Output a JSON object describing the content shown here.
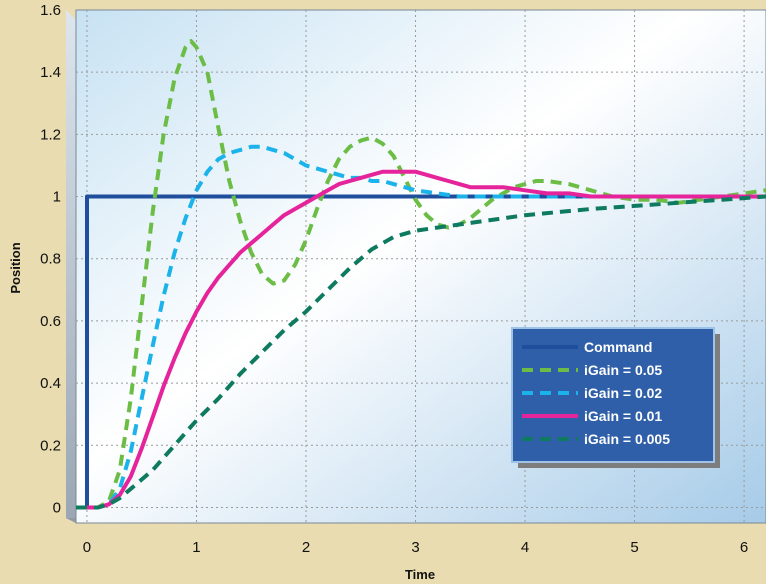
{
  "chart_data": {
    "type": "line",
    "title": "",
    "xlabel": "Time",
    "ylabel": "Position",
    "xlim": [
      -0.1,
      6.2
    ],
    "ylim": [
      -0.05,
      1.6
    ],
    "x_ticks": [
      0,
      1,
      2,
      3,
      4,
      5,
      6
    ],
    "y_ticks": [
      0,
      0.2,
      0.4,
      0.6,
      0.8,
      1,
      1.2,
      1.4,
      1.6
    ],
    "x_tick_labels": [
      "0",
      "1",
      "2",
      "3",
      "4",
      "5",
      "6"
    ],
    "y_tick_labels": [
      "0",
      "0.2",
      "0.4",
      "0.6",
      "0.8",
      "1",
      "1.2",
      "1.4",
      "1.6"
    ],
    "grid": true,
    "legend_position": "lower-right",
    "series": [
      {
        "name": "Command",
        "color": "#1f4e9c",
        "dash": "solid",
        "points": [
          [
            -0.1,
            0
          ],
          [
            0,
            0
          ],
          [
            0,
            1
          ],
          [
            6.2,
            1
          ]
        ]
      },
      {
        "name": "iGain = 0.05",
        "color": "#6cbd45",
        "dash": "dashed",
        "points": [
          [
            -0.1,
            0
          ],
          [
            0.1,
            0
          ],
          [
            0.2,
            0.02
          ],
          [
            0.3,
            0.12
          ],
          [
            0.4,
            0.35
          ],
          [
            0.5,
            0.65
          ],
          [
            0.6,
            0.95
          ],
          [
            0.7,
            1.2
          ],
          [
            0.8,
            1.38
          ],
          [
            0.9,
            1.48
          ],
          [
            0.95,
            1.5
          ],
          [
            1.0,
            1.48
          ],
          [
            1.1,
            1.4
          ],
          [
            1.2,
            1.22
          ],
          [
            1.3,
            1.05
          ],
          [
            1.4,
            0.92
          ],
          [
            1.5,
            0.82
          ],
          [
            1.6,
            0.75
          ],
          [
            1.7,
            0.72
          ],
          [
            1.8,
            0.73
          ],
          [
            1.9,
            0.78
          ],
          [
            2.0,
            0.86
          ],
          [
            2.1,
            0.96
          ],
          [
            2.2,
            1.05
          ],
          [
            2.3,
            1.12
          ],
          [
            2.4,
            1.16
          ],
          [
            2.5,
            1.18
          ],
          [
            2.6,
            1.19
          ],
          [
            2.7,
            1.17
          ],
          [
            2.8,
            1.13
          ],
          [
            2.9,
            1.06
          ],
          [
            3.0,
            0.99
          ],
          [
            3.1,
            0.94
          ],
          [
            3.2,
            0.91
          ],
          [
            3.3,
            0.9
          ],
          [
            3.4,
            0.91
          ],
          [
            3.5,
            0.93
          ],
          [
            3.6,
            0.96
          ],
          [
            3.7,
            0.99
          ],
          [
            3.8,
            1.01
          ],
          [
            3.9,
            1.03
          ],
          [
            4.0,
            1.04
          ],
          [
            4.1,
            1.05
          ],
          [
            4.2,
            1.05
          ],
          [
            4.4,
            1.04
          ],
          [
            4.6,
            1.02
          ],
          [
            4.8,
            1.0
          ],
          [
            5.0,
            0.99
          ],
          [
            5.2,
            0.99
          ],
          [
            5.4,
            0.98
          ],
          [
            5.6,
            0.99
          ],
          [
            5.8,
            1.0
          ],
          [
            6.0,
            1.01
          ],
          [
            6.2,
            1.02
          ]
        ]
      },
      {
        "name": "iGain = 0.02",
        "color": "#1bb3ea",
        "dash": "dashed",
        "points": [
          [
            -0.1,
            0
          ],
          [
            0.1,
            0
          ],
          [
            0.2,
            0.01
          ],
          [
            0.3,
            0.06
          ],
          [
            0.4,
            0.18
          ],
          [
            0.5,
            0.35
          ],
          [
            0.6,
            0.52
          ],
          [
            0.7,
            0.68
          ],
          [
            0.8,
            0.82
          ],
          [
            0.9,
            0.93
          ],
          [
            1.0,
            1.02
          ],
          [
            1.1,
            1.08
          ],
          [
            1.2,
            1.12
          ],
          [
            1.3,
            1.14
          ],
          [
            1.4,
            1.15
          ],
          [
            1.5,
            1.16
          ],
          [
            1.6,
            1.16
          ],
          [
            1.7,
            1.15
          ],
          [
            1.8,
            1.14
          ],
          [
            1.9,
            1.12
          ],
          [
            2.0,
            1.1
          ],
          [
            2.1,
            1.09
          ],
          [
            2.2,
            1.08
          ],
          [
            2.3,
            1.07
          ],
          [
            2.4,
            1.06
          ],
          [
            2.5,
            1.06
          ],
          [
            2.6,
            1.05
          ],
          [
            2.7,
            1.05
          ],
          [
            2.8,
            1.04
          ],
          [
            2.9,
            1.03
          ],
          [
            3.0,
            1.02
          ],
          [
            3.2,
            1.01
          ],
          [
            3.4,
            1.0
          ],
          [
            3.6,
            1.0
          ],
          [
            3.8,
            1.0
          ],
          [
            4.0,
            1.0
          ],
          [
            4.4,
            1.0
          ],
          [
            5.0,
            1.0
          ],
          [
            5.6,
            1.0
          ],
          [
            6.2,
            1.0
          ]
        ]
      },
      {
        "name": "iGain = 0.01",
        "color": "#e5239b",
        "dash": "solid",
        "points": [
          [
            -0.1,
            0
          ],
          [
            0.1,
            0
          ],
          [
            0.2,
            0.01
          ],
          [
            0.3,
            0.04
          ],
          [
            0.4,
            0.1
          ],
          [
            0.5,
            0.19
          ],
          [
            0.6,
            0.29
          ],
          [
            0.7,
            0.39
          ],
          [
            0.8,
            0.48
          ],
          [
            0.9,
            0.56
          ],
          [
            1.0,
            0.63
          ],
          [
            1.1,
            0.69
          ],
          [
            1.2,
            0.74
          ],
          [
            1.3,
            0.78
          ],
          [
            1.4,
            0.82
          ],
          [
            1.5,
            0.85
          ],
          [
            1.6,
            0.88
          ],
          [
            1.7,
            0.91
          ],
          [
            1.8,
            0.94
          ],
          [
            1.9,
            0.96
          ],
          [
            2.0,
            0.98
          ],
          [
            2.1,
            1.0
          ],
          [
            2.2,
            1.02
          ],
          [
            2.3,
            1.04
          ],
          [
            2.4,
            1.05
          ],
          [
            2.5,
            1.06
          ],
          [
            2.6,
            1.07
          ],
          [
            2.7,
            1.08
          ],
          [
            2.8,
            1.08
          ],
          [
            2.9,
            1.08
          ],
          [
            3.0,
            1.08
          ],
          [
            3.1,
            1.07
          ],
          [
            3.2,
            1.06
          ],
          [
            3.3,
            1.05
          ],
          [
            3.4,
            1.04
          ],
          [
            3.5,
            1.03
          ],
          [
            3.6,
            1.03
          ],
          [
            3.8,
            1.03
          ],
          [
            4.0,
            1.02
          ],
          [
            4.2,
            1.01
          ],
          [
            4.4,
            1.01
          ],
          [
            4.6,
            1.0
          ],
          [
            5.0,
            1.0
          ],
          [
            5.5,
            1.0
          ],
          [
            6.2,
            1.0
          ]
        ]
      },
      {
        "name": "iGain = 0.005",
        "color": "#0e7a5f",
        "dash": "dashed",
        "points": [
          [
            -0.1,
            0
          ],
          [
            0.1,
            0
          ],
          [
            0.2,
            0.01
          ],
          [
            0.3,
            0.03
          ],
          [
            0.4,
            0.06
          ],
          [
            0.5,
            0.09
          ],
          [
            0.6,
            0.12
          ],
          [
            0.7,
            0.16
          ],
          [
            0.8,
            0.2
          ],
          [
            0.9,
            0.24
          ],
          [
            1.0,
            0.28
          ],
          [
            1.2,
            0.35
          ],
          [
            1.4,
            0.43
          ],
          [
            1.6,
            0.5
          ],
          [
            1.8,
            0.57
          ],
          [
            2.0,
            0.63
          ],
          [
            2.2,
            0.7
          ],
          [
            2.4,
            0.77
          ],
          [
            2.6,
            0.83
          ],
          [
            2.8,
            0.87
          ],
          [
            3.0,
            0.89
          ],
          [
            3.2,
            0.9
          ],
          [
            3.4,
            0.91
          ],
          [
            3.6,
            0.92
          ],
          [
            3.8,
            0.93
          ],
          [
            4.0,
            0.94
          ],
          [
            4.3,
            0.95
          ],
          [
            4.6,
            0.96
          ],
          [
            5.0,
            0.97
          ],
          [
            5.4,
            0.98
          ],
          [
            5.8,
            0.99
          ],
          [
            6.2,
            1.0
          ]
        ]
      }
    ],
    "legend": [
      {
        "label": "Command",
        "color": "#1f4e9c",
        "dash": "solid"
      },
      {
        "label": "iGain = 0.05",
        "color": "#6cbd45",
        "dash": "dashed"
      },
      {
        "label": "iGain = 0.02",
        "color": "#1bb3ea",
        "dash": "dashed"
      },
      {
        "label": "iGain = 0.01",
        "color": "#e5239b",
        "dash": "solid"
      },
      {
        "label": "iGain = 0.005",
        "color": "#0e7a5f",
        "dash": "dashed"
      }
    ],
    "colors": {
      "page_background": "#e8dcb0",
      "plot_gradient_start": "#c7e2f3",
      "plot_gradient_end": "#a6cbe8",
      "grid": "#9a9a9a",
      "legend_background": "#2f5fa8",
      "legend_shadow": "#7d7d7d"
    }
  }
}
